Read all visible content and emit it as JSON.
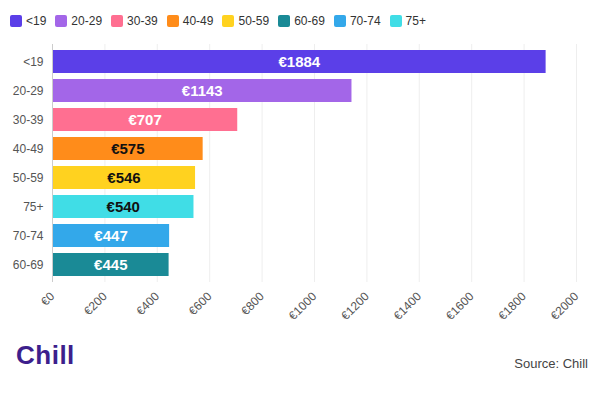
{
  "chart_data": {
    "type": "bar",
    "orientation": "horizontal",
    "categories": [
      "<19",
      "20-29",
      "30-39",
      "40-49",
      "50-59",
      "75+",
      "70-74",
      "60-69"
    ],
    "values": [
      1884,
      1143,
      707,
      575,
      546,
      540,
      447,
      445
    ],
    "value_labels": [
      "€1884",
      "€1143",
      "€707",
      "€575",
      "€546",
      "€540",
      "€447",
      "€445"
    ],
    "colors": [
      "#5b3fe8",
      "#a366e8",
      "#ff6f91",
      "#ff8c1a",
      "#ffd21f",
      "#40dde6",
      "#33a8ea",
      "#1a8a96"
    ],
    "data_labels": true,
    "legend": "top",
    "legend_order": [
      "<19",
      "20-29",
      "30-39",
      "40-49",
      "50-59",
      "60-69",
      "70-74",
      "75+"
    ],
    "xlim": [
      0,
      2000
    ],
    "xticks": [
      {
        "value": 0,
        "label": "€0"
      },
      {
        "value": 200,
        "label": "€200"
      },
      {
        "value": 400,
        "label": "€400"
      },
      {
        "value": 600,
        "label": "€600"
      },
      {
        "value": 800,
        "label": "€800"
      },
      {
        "value": 1000,
        "label": "€1000"
      },
      {
        "value": 1200,
        "label": "€1200"
      },
      {
        "value": 1400,
        "label": "€1400"
      },
      {
        "value": 1600,
        "label": "€1600"
      },
      {
        "value": 1800,
        "label": "€1800"
      },
      {
        "value": 2000,
        "label": "€2000"
      }
    ],
    "grid": true,
    "logo": "Chill",
    "source": "Source: Chill"
  }
}
